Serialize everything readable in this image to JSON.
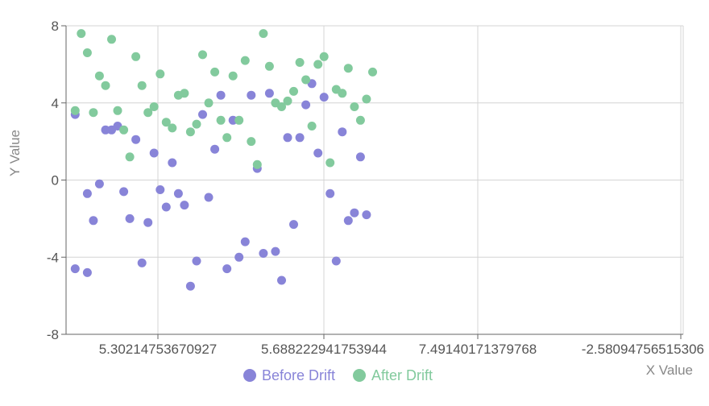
{
  "chart_data": {
    "type": "scatter",
    "xlabel": "X Value",
    "ylabel": "Y Value",
    "ylim": [
      -8,
      8
    ],
    "y_ticks": [
      "8",
      "4",
      "0",
      "-4",
      "-8"
    ],
    "x_tick_labels": [
      "5.30214753670927",
      "5.688222941753944",
      "7.49140171379768",
      "-2.58094756515306"
    ],
    "grid": true,
    "legend_position": "bottom-center",
    "series": [
      {
        "name": "Before Drift",
        "color": "#8884d8",
        "points": [
          {
            "x": 5.0,
            "y": 3.4
          },
          {
            "x": 5.32,
            "y": 4.5
          },
          {
            "x": 5.02,
            "y": -0.7
          },
          {
            "x": 5.03,
            "y": -2.1
          },
          {
            "x": 5.04,
            "y": -0.2
          },
          {
            "x": 5.05,
            "y": 2.6
          },
          {
            "x": 5.06,
            "y": 2.6
          },
          {
            "x": 5.07,
            "y": 2.8
          },
          {
            "x": 5.08,
            "y": -0.6
          },
          {
            "x": 5.09,
            "y": -2.0
          },
          {
            "x": 5.1,
            "y": 2.1
          },
          {
            "x": 5.11,
            "y": -4.3
          },
          {
            "x": 5.12,
            "y": -2.2
          },
          {
            "x": 5.13,
            "y": 1.4
          },
          {
            "x": 5.14,
            "y": -0.5
          },
          {
            "x": 5.15,
            "y": -1.4
          },
          {
            "x": 5.16,
            "y": 0.9
          },
          {
            "x": 5.17,
            "y": -0.7
          },
          {
            "x": 5.18,
            "y": -1.3
          },
          {
            "x": 5.19,
            "y": -5.5
          },
          {
            "x": 5.2,
            "y": -4.2
          },
          {
            "x": 5.21,
            "y": 3.4
          },
          {
            "x": 5.22,
            "y": -0.9
          },
          {
            "x": 5.23,
            "y": 1.6
          },
          {
            "x": 5.24,
            "y": 4.4
          },
          {
            "x": 5.25,
            "y": -4.6
          },
          {
            "x": 5.26,
            "y": 3.1
          },
          {
            "x": 5.27,
            "y": -4.0
          },
          {
            "x": 5.28,
            "y": -3.2
          },
          {
            "x": 5.29,
            "y": 4.4
          },
          {
            "x": 5.3,
            "y": 0.6
          },
          {
            "x": 5.31,
            "y": -3.8
          },
          {
            "x": 5.33,
            "y": -3.7
          },
          {
            "x": 5.34,
            "y": -5.2
          },
          {
            "x": 5.35,
            "y": 2.2
          },
          {
            "x": 5.36,
            "y": -2.3
          },
          {
            "x": 5.37,
            "y": 2.2
          },
          {
            "x": 5.38,
            "y": 3.9
          },
          {
            "x": 5.39,
            "y": 5.0
          },
          {
            "x": 5.4,
            "y": 1.4
          },
          {
            "x": 5.41,
            "y": 4.3
          },
          {
            "x": 5.42,
            "y": -0.7
          },
          {
            "x": 5.43,
            "y": -4.2
          },
          {
            "x": 5.44,
            "y": 2.5
          },
          {
            "x": 5.45,
            "y": -2.1
          },
          {
            "x": 5.46,
            "y": -1.7
          },
          {
            "x": 5.47,
            "y": 1.2
          },
          {
            "x": 5.48,
            "y": -1.8
          },
          {
            "x": 5.0,
            "y": -4.6
          },
          {
            "x": 5.02,
            "y": -4.8
          }
        ]
      },
      {
        "name": "After Drift",
        "color": "#82ca9d",
        "points": [
          {
            "x": 5.0,
            "y": 3.6
          },
          {
            "x": 5.01,
            "y": 7.6
          },
          {
            "x": 5.02,
            "y": 6.6
          },
          {
            "x": 5.03,
            "y": 3.5
          },
          {
            "x": 5.04,
            "y": 5.4
          },
          {
            "x": 5.05,
            "y": 4.9
          },
          {
            "x": 5.06,
            "y": 7.3
          },
          {
            "x": 5.07,
            "y": 3.6
          },
          {
            "x": 5.08,
            "y": 2.6
          },
          {
            "x": 5.09,
            "y": 1.2
          },
          {
            "x": 5.1,
            "y": 6.4
          },
          {
            "x": 5.11,
            "y": 4.9
          },
          {
            "x": 5.12,
            "y": 3.5
          },
          {
            "x": 5.13,
            "y": 3.8
          },
          {
            "x": 5.14,
            "y": 5.5
          },
          {
            "x": 5.15,
            "y": 3.0
          },
          {
            "x": 5.16,
            "y": 2.7
          },
          {
            "x": 5.17,
            "y": 4.4
          },
          {
            "x": 5.18,
            "y": 4.5
          },
          {
            "x": 5.19,
            "y": 2.5
          },
          {
            "x": 5.2,
            "y": 2.9
          },
          {
            "x": 5.21,
            "y": 6.5
          },
          {
            "x": 5.22,
            "y": 4.0
          },
          {
            "x": 5.23,
            "y": 5.6
          },
          {
            "x": 5.24,
            "y": 3.1
          },
          {
            "x": 5.25,
            "y": 2.2
          },
          {
            "x": 5.26,
            "y": 5.4
          },
          {
            "x": 5.27,
            "y": 3.1
          },
          {
            "x": 5.28,
            "y": 6.2
          },
          {
            "x": 5.29,
            "y": 2.0
          },
          {
            "x": 5.3,
            "y": 0.8
          },
          {
            "x": 5.31,
            "y": 7.6
          },
          {
            "x": 5.32,
            "y": 5.9
          },
          {
            "x": 5.33,
            "y": 4.0
          },
          {
            "x": 5.34,
            "y": 3.8
          },
          {
            "x": 5.35,
            "y": 4.1
          },
          {
            "x": 5.36,
            "y": 4.6
          },
          {
            "x": 5.37,
            "y": 6.1
          },
          {
            "x": 5.38,
            "y": 5.2
          },
          {
            "x": 5.39,
            "y": 2.8
          },
          {
            "x": 5.4,
            "y": 6.0
          },
          {
            "x": 5.41,
            "y": 6.4
          },
          {
            "x": 5.42,
            "y": 0.9
          },
          {
            "x": 5.43,
            "y": 4.7
          },
          {
            "x": 5.44,
            "y": 4.5
          },
          {
            "x": 5.45,
            "y": 5.8
          },
          {
            "x": 5.46,
            "y": 3.8
          },
          {
            "x": 5.47,
            "y": 3.1
          },
          {
            "x": 5.48,
            "y": 4.2
          },
          {
            "x": 5.49,
            "y": 5.6
          }
        ]
      }
    ]
  }
}
